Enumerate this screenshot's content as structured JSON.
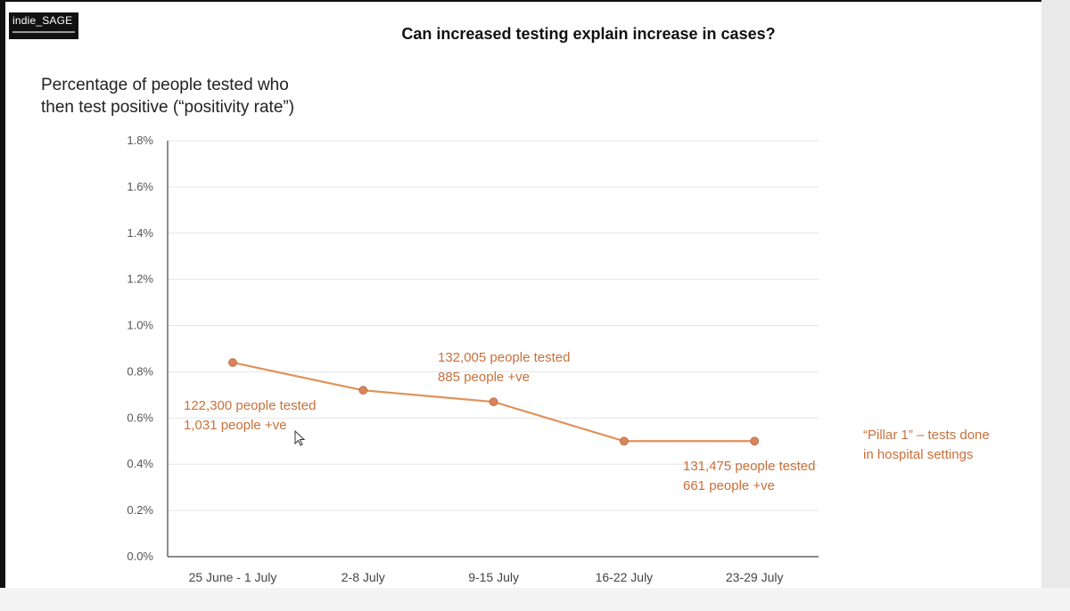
{
  "logo": {
    "text": "indie_SAGE"
  },
  "title": "Can increased testing explain increase in cases?",
  "ylabel_lines": [
    "Percentage of people tested who",
    "then test positive (“positivity rate”)"
  ],
  "side_note_lines": [
    "“Pillar 1” – tests done",
    "in hospital settings"
  ],
  "colors": {
    "line": "#e0915a",
    "marker": "#d9845a",
    "annotation": "#c8703a",
    "grid": "#e6e6e6",
    "axis": "#444444"
  },
  "chart_data": {
    "type": "line",
    "categories": [
      "25 June - 1 July",
      "2-8 July",
      "9-15 July",
      "16-22 July",
      "23-29 July"
    ],
    "series": [
      {
        "values": [
          0.84,
          0.72,
          0.67,
          0.5,
          0.5
        ]
      }
    ],
    "ylim": [
      0,
      1.8
    ],
    "yticks": [
      "0.0%",
      "0.2%",
      "0.4%",
      "0.6%",
      "0.8%",
      "1.0%",
      "1.2%",
      "1.4%",
      "1.6%",
      "1.8%"
    ],
    "grid": true,
    "annotations": [
      {
        "lines": [
          "122,300 people tested",
          "1,031 people +ve"
        ]
      },
      {
        "lines": [
          "132,005 people tested",
          "885 people +ve"
        ]
      },
      {
        "lines": [
          "131,475 people tested",
          "661 people +ve"
        ]
      }
    ]
  }
}
